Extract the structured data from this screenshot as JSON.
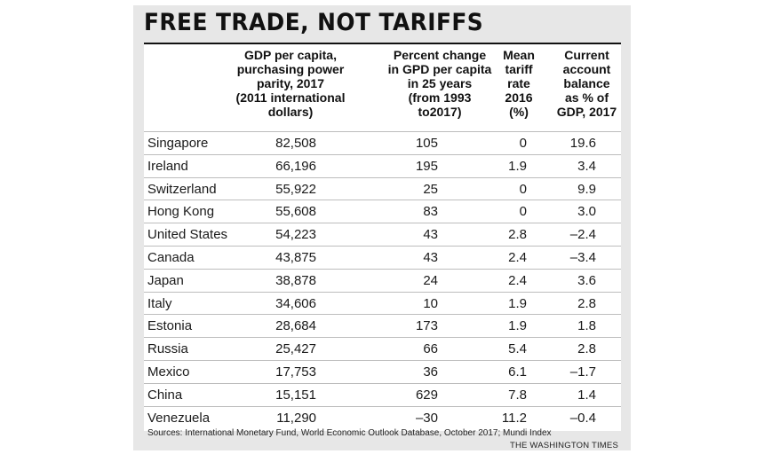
{
  "chart_data": {
    "type": "table",
    "title": "FREE TRADE, NOT TARIFFS",
    "columns": [
      "",
      "GDP per capita, purchasing power parity, 2017 (2011 international dollars)",
      "Percent change in GPD per capita in 25 years (from 1993 to2017)",
      "Mean tariff rate 2016 (%)",
      "Current account balance as % of GDP, 2017"
    ],
    "header_lines": {
      "gdp": [
        "GDP per capita,",
        "purchasing power",
        "parity, 2017",
        "(2011 international",
        "dollars)"
      ],
      "change": [
        "Percent change",
        "in GPD per capita",
        "in 25 years",
        "(from 1993",
        "to2017)"
      ],
      "tariff": [
        "Mean",
        "tariff",
        "rate",
        "2016",
        "(%)"
      ],
      "cab": [
        "Current",
        "account",
        "balance",
        "as % of",
        "GDP, 2017"
      ]
    },
    "rows": [
      {
        "country": "Singapore",
        "gdp": "82,508",
        "change": "105",
        "tariff": "0",
        "cab": "19.6"
      },
      {
        "country": "Ireland",
        "gdp": "66,196",
        "change": "195",
        "tariff": "1.9",
        "cab": "3.4"
      },
      {
        "country": "Switzerland",
        "gdp": "55,922",
        "change": "25",
        "tariff": "0",
        "cab": "9.9"
      },
      {
        "country": "Hong Kong",
        "gdp": "55,608",
        "change": "83",
        "tariff": "0",
        "cab": "3.0"
      },
      {
        "country": "United States",
        "gdp": "54,223",
        "change": "43",
        "tariff": "2.8",
        "cab": "–2.4"
      },
      {
        "country": "Canada",
        "gdp": "43,875",
        "change": "43",
        "tariff": "2.4",
        "cab": "–3.4"
      },
      {
        "country": "Japan",
        "gdp": "38,878",
        "change": "24",
        "tariff": "2.4",
        "cab": "3.6"
      },
      {
        "country": "Italy",
        "gdp": "34,606",
        "change": "10",
        "tariff": "1.9",
        "cab": "2.8"
      },
      {
        "country": "Estonia",
        "gdp": "28,684",
        "change": "173",
        "tariff": "1.9",
        "cab": "1.8"
      },
      {
        "country": "Russia",
        "gdp": "25,427",
        "change": "66",
        "tariff": "5.4",
        "cab": "2.8"
      },
      {
        "country": "Mexico",
        "gdp": "17,753",
        "change": "36",
        "tariff": "6.1",
        "cab": "–1.7"
      },
      {
        "country": "China",
        "gdp": "15,151",
        "change": "629",
        "tariff": "7.8",
        "cab": "1.4"
      },
      {
        "country": "Venezuela",
        "gdp": "11,290",
        "change": "–30",
        "tariff": "11.2",
        "cab": "–0.4"
      }
    ],
    "source": "Sources: International Monetary Fund, World Economic Outlook Database, October 2017; Mundi Index",
    "credit": "THE WASHINGTON TIMES"
  }
}
